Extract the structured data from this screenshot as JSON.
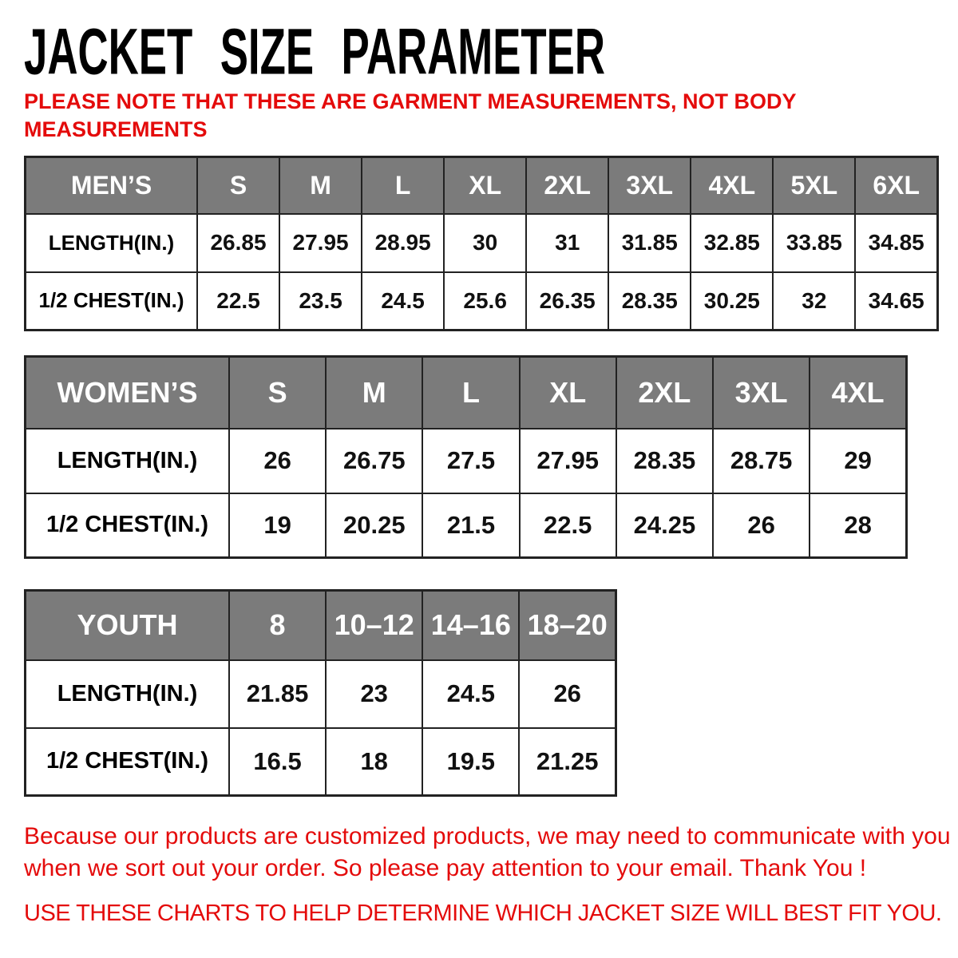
{
  "page": {
    "title": "JACKET SIZE PARAMETER",
    "note_lines": [
      "PLEASE NOTE THAT THESE ARE GARMENT MEASUREMENTS, NOT BODY",
      "MEASUREMENTS"
    ],
    "footer_note_lines": [
      "Because our products are customized products, we may need to communicate with you",
      "when we sort out your order. So please pay attention to your email. Thank You !"
    ],
    "footer_instruction": "USE THESE CHARTS TO HELP DETERMINE WHICH JACKET SIZE WILL BEST FIT YOU."
  },
  "colors": {
    "header_bg": "#7b7b7b",
    "header_text": "#ffffff",
    "red_text": "#e40b0b",
    "border": "#222222",
    "title_text": "#000000"
  },
  "tables": [
    {
      "name": "mens",
      "header": "MEN’S",
      "sizes": [
        "S",
        "M",
        "L",
        "XL",
        "2XL",
        "3XL",
        "4XL",
        "5XL",
        "6XL"
      ],
      "rows": [
        {
          "label": "LENGTH(IN.)",
          "values": [
            "26.85",
            "27.95",
            "28.95",
            "30",
            "31",
            "31.85",
            "32.85",
            "33.85",
            "34.85"
          ]
        },
        {
          "label": "1/2 CHEST(IN.)",
          "values": [
            "22.5",
            "23.5",
            "24.5",
            "25.6",
            "26.35",
            "28.35",
            "30.25",
            "32",
            "34.65"
          ]
        }
      ]
    },
    {
      "name": "womens",
      "header": "WOMEN’S",
      "sizes": [
        "S",
        "M",
        "L",
        "XL",
        "2XL",
        "3XL",
        "4XL"
      ],
      "rows": [
        {
          "label": "LENGTH(IN.)",
          "values": [
            "26",
            "26.75",
            "27.5",
            "27.95",
            "28.35",
            "28.75",
            "29"
          ]
        },
        {
          "label": "1/2 CHEST(IN.)",
          "values": [
            "19",
            "20.25",
            "21.5",
            "22.5",
            "24.25",
            "26",
            "28"
          ]
        }
      ]
    },
    {
      "name": "youth",
      "header": "YOUTH",
      "sizes": [
        "8",
        "10–12",
        "14–16",
        "18–20"
      ],
      "rows": [
        {
          "label": "LENGTH(IN.)",
          "values": [
            "21.85",
            "23",
            "24.5",
            "26"
          ]
        },
        {
          "label": "1/2 CHEST(IN.)",
          "values": [
            "16.5",
            "18",
            "19.5",
            "21.25"
          ]
        }
      ]
    }
  ]
}
